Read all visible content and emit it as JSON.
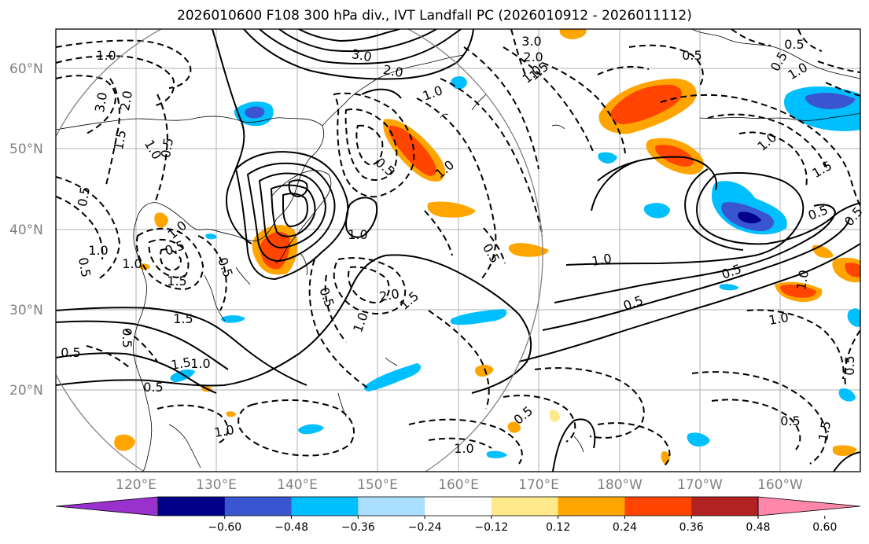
{
  "title": "2026010600 F108 300 hPa div., IVT Landfall PC (2026010912 - 2026011112)",
  "lat_labels": [
    "60°N",
    "50°N",
    "40°N",
    "30°N",
    "20°N"
  ],
  "lon_labels": [
    "120°E",
    "130°E",
    "140°E",
    "150°E",
    "160°E",
    "170°E",
    "180°W",
    "170°W",
    "160°W"
  ],
  "colorbar": {
    "colors": [
      "#9932cc",
      "#00008b",
      "#3a55d0",
      "#00bfff",
      "#aadfff",
      "#ffffff",
      "#ffe98a",
      "#ffa500",
      "#ff4500",
      "#b22222",
      "#ff88aa"
    ],
    "ticks": [
      "−0.60",
      "−0.48",
      "−0.36",
      "−0.24",
      "−0.12",
      "0.12",
      "0.24",
      "0.36",
      "0.48",
      "0.60"
    ]
  },
  "contour_labels": [
    "1.0",
    "3.0",
    "2.0",
    "1.0",
    "3.0",
    "2.0",
    "1.5",
    "1.0",
    "0.5",
    "0.5",
    "1.0",
    "0.5",
    "3.0",
    "2.0",
    "1.5",
    "0.5",
    "0.5",
    "1.0",
    "0.5",
    "1.0",
    "1.5",
    "1.0",
    "0.5",
    "1.0",
    "2.0",
    "1.5",
    "0.5",
    "0.5",
    "1.0",
    "1.0",
    "1.5",
    "0.5",
    "1.5",
    "1.0",
    "0.5",
    "1.0",
    "0.5",
    "0.5",
    "1.0",
    "0.5",
    "1.0",
    "0.5",
    "0.5",
    "1.0",
    "0.5",
    "0.5",
    "1.0",
    "1.5",
    "1.0",
    "0.5",
    "0.5",
    "1.5",
    "1.0",
    "0.5"
  ]
}
